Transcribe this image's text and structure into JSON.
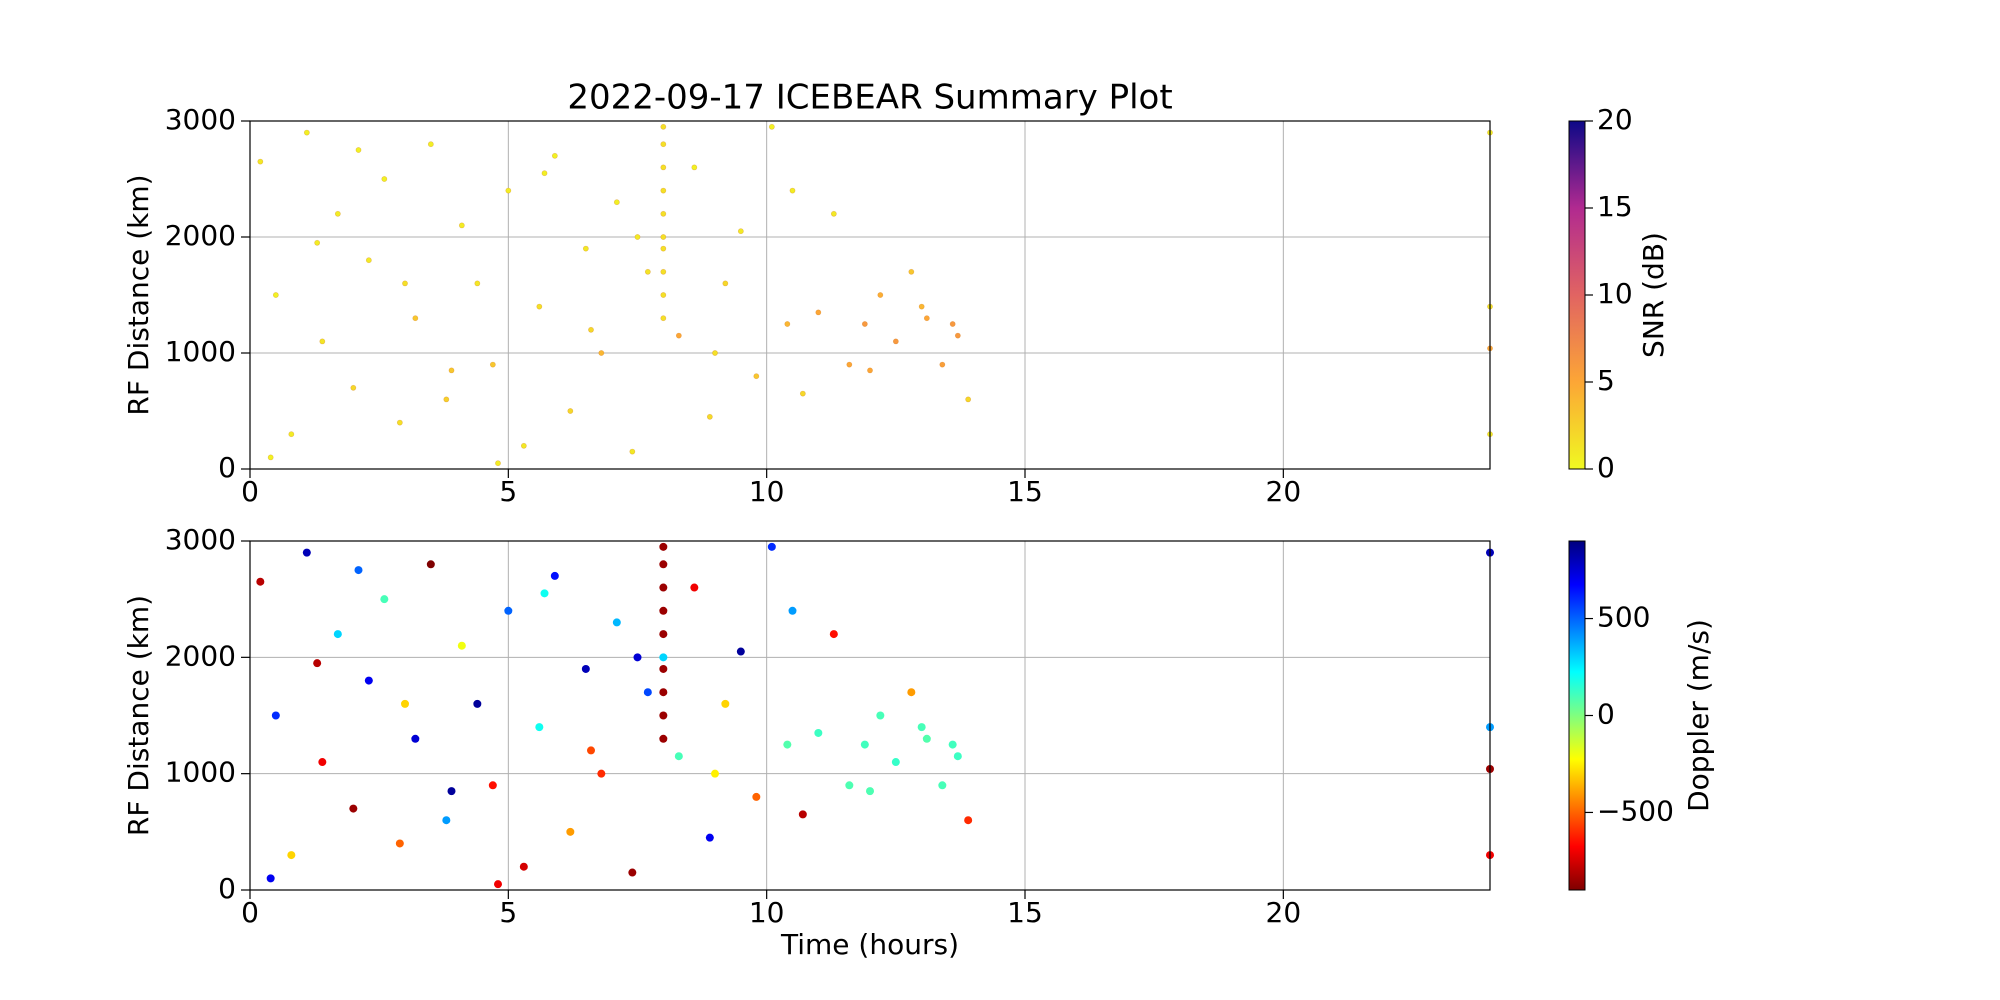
{
  "chart_data": [
    {
      "type": "scatter",
      "title": "2022-09-17 ICEBEAR Summary Plot",
      "ylabel": "RF Distance (km)",
      "xlim": [
        0,
        24
      ],
      "ylim": [
        0,
        3000
      ],
      "xticks": [
        0,
        5,
        10,
        15,
        20
      ],
      "yticks": [
        0,
        1000,
        2000,
        3000
      ],
      "grid": true,
      "colorbar": {
        "label": "SNR (dB)",
        "clim": [
          0,
          20
        ],
        "ticks": [
          0,
          5,
          10,
          15,
          20
        ],
        "colormap": "plasma_r"
      },
      "x": [
        0.2,
        0.5,
        0.8,
        1.1,
        1.4,
        1.7,
        2.0,
        2.3,
        2.6,
        2.9,
        3.2,
        3.5,
        3.8,
        4.1,
        4.4,
        4.7,
        5.0,
        5.3,
        5.6,
        5.9,
        6.2,
        6.5,
        6.8,
        7.1,
        7.4,
        7.7,
        8.3,
        8.6,
        8.9,
        9.2,
        9.5,
        9.8,
        10.1,
        10.4,
        10.7,
        11.0,
        11.3,
        11.6,
        11.9,
        12.2,
        12.5,
        12.8,
        13.1,
        13.4,
        13.7,
        13.9,
        0.4,
        1.3,
        2.1,
        3.0,
        3.9,
        4.8,
        5.7,
        6.6,
        7.5,
        9.0,
        10.5,
        12.0,
        13.0,
        13.6,
        8,
        8,
        8,
        8,
        8,
        8,
        8,
        8,
        8,
        8,
        24,
        24,
        24,
        24
      ],
      "y": [
        2650,
        1500,
        300,
        2900,
        1100,
        2200,
        700,
        1800,
        2500,
        400,
        1300,
        2800,
        600,
        2100,
        1600,
        900,
        2400,
        200,
        1400,
        2700,
        500,
        1900,
        1000,
        2300,
        150,
        1700,
        1150,
        2600,
        450,
        1600,
        2050,
        800,
        2950,
        1250,
        650,
        1350,
        2200,
        900,
        1250,
        1500,
        1100,
        1700,
        1300,
        900,
        1150,
        600,
        100,
        1950,
        2750,
        1600,
        850,
        50,
        2550,
        1200,
        2000,
        1000,
        2400,
        850,
        1400,
        1250,
        1300,
        1500,
        1700,
        1900,
        2000,
        2200,
        2400,
        2600,
        2800,
        2950,
        1040,
        2900,
        300,
        1400
      ],
      "c": [
        1,
        0.5,
        0.8,
        0.6,
        1.2,
        0.7,
        2,
        0.9,
        0.5,
        1.5,
        3,
        0.6,
        2.5,
        0.8,
        1.1,
        3,
        0.7,
        1,
        1.5,
        0.5,
        2,
        1,
        4,
        0.6,
        1,
        1.3,
        5,
        0.5,
        1.8,
        2,
        0.9,
        3,
        0.5,
        4,
        2,
        5,
        1,
        5,
        6,
        4.5,
        6,
        3,
        5,
        5.5,
        6,
        2,
        0.4,
        0.8,
        0.5,
        1.5,
        3,
        0.7,
        0.6,
        2,
        0.9,
        1.5,
        0.8,
        5,
        4,
        6,
        1.5,
        1.5,
        1.5,
        1.5,
        1.5,
        1.5,
        1.5,
        1.5,
        1.5,
        1.5,
        5,
        0.5,
        0.5,
        1
      ]
    },
    {
      "type": "scatter",
      "ylabel": "RF Distance (km)",
      "xlabel": "Time (hours)",
      "xlim": [
        0,
        24
      ],
      "ylim": [
        0,
        3000
      ],
      "xticks": [
        0,
        5,
        10,
        15,
        20
      ],
      "yticks": [
        0,
        1000,
        2000,
        3000
      ],
      "grid": true,
      "colorbar": {
        "label": "Doppler (m/s)",
        "clim": [
          -900,
          900
        ],
        "ticks": [
          {
            "value": -500,
            "label": "−500"
          },
          0,
          500
        ],
        "colormap": "jet_r"
      },
      "x": [
        0.2,
        0.5,
        0.8,
        1.1,
        1.4,
        1.7,
        2.0,
        2.3,
        2.6,
        2.9,
        3.2,
        3.5,
        3.8,
        4.1,
        4.4,
        4.7,
        5.0,
        5.3,
        5.6,
        5.9,
        6.2,
        6.5,
        6.8,
        7.1,
        7.4,
        7.7,
        8.3,
        8.6,
        8.9,
        9.2,
        9.5,
        9.8,
        10.1,
        10.4,
        10.7,
        11.0,
        11.3,
        11.6,
        11.9,
        12.2,
        12.5,
        12.8,
        13.1,
        13.4,
        13.7,
        13.9,
        0.4,
        1.3,
        2.1,
        3.0,
        3.9,
        4.8,
        5.7,
        6.6,
        7.5,
        9.0,
        10.5,
        12.0,
        13.0,
        13.6,
        8,
        8,
        8,
        8,
        8,
        8,
        8,
        8,
        8,
        8,
        24,
        24,
        24,
        24
      ],
      "y": [
        2650,
        1500,
        300,
        2900,
        1100,
        2200,
        700,
        1800,
        2500,
        400,
        1300,
        2800,
        600,
        2100,
        1600,
        900,
        2400,
        200,
        1400,
        2700,
        500,
        1900,
        1000,
        2300,
        150,
        1700,
        1150,
        2600,
        450,
        1600,
        2050,
        800,
        2950,
        1250,
        650,
        1350,
        2200,
        900,
        1250,
        1500,
        1100,
        1700,
        1300,
        900,
        1150,
        600,
        100,
        1950,
        2750,
        1600,
        850,
        50,
        2550,
        1200,
        2000,
        1000,
        2400,
        850,
        1400,
        1250,
        1300,
        1500,
        1700,
        1900,
        2000,
        2200,
        2400,
        2600,
        2800,
        2950,
        1040,
        2900,
        300,
        1400
      ],
      "c": [
        -800,
        600,
        -300,
        800,
        -700,
        300,
        -850,
        700,
        100,
        -500,
        750,
        -900,
        400,
        -200,
        850,
        -650,
        500,
        -750,
        200,
        650,
        -400,
        800,
        -600,
        350,
        -850,
        550,
        100,
        -700,
        700,
        -300,
        850,
        -500,
        600,
        80,
        -800,
        120,
        -650,
        90,
        110,
        100,
        130,
        -400,
        80,
        100,
        120,
        -600,
        700,
        -800,
        500,
        -300,
        850,
        -700,
        200,
        -550,
        750,
        -250,
        400,
        90,
        100,
        110,
        -850,
        -850,
        -850,
        -850,
        300,
        -850,
        -850,
        -850,
        -850,
        -850,
        -850,
        800,
        -700,
        400
      ]
    }
  ]
}
